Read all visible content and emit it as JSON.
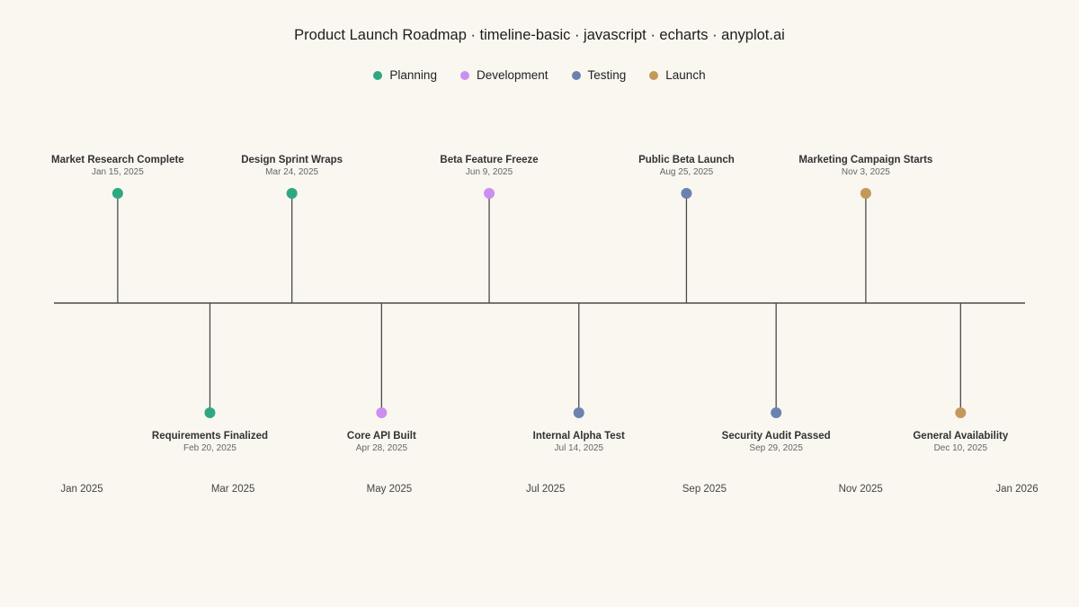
{
  "chart_data": {
    "type": "timeline",
    "title": "Product Launch Roadmap · timeline-basic · javascript · echarts · anyplot.ai",
    "categories": [
      {
        "name": "Planning",
        "color": "#2fa882"
      },
      {
        "name": "Development",
        "color": "#cc8ef0"
      },
      {
        "name": "Testing",
        "color": "#6b82b0"
      },
      {
        "name": "Launch",
        "color": "#c4985a"
      }
    ],
    "events": [
      {
        "title": "Market Research Complete",
        "date": "2025-01-15",
        "date_label": "Jan 15, 2025",
        "category": "Planning",
        "side": "above"
      },
      {
        "title": "Requirements Finalized",
        "date": "2025-02-20",
        "date_label": "Feb 20, 2025",
        "category": "Planning",
        "side": "below"
      },
      {
        "title": "Design Sprint Wraps",
        "date": "2025-03-24",
        "date_label": "Mar 24, 2025",
        "category": "Planning",
        "side": "above"
      },
      {
        "title": "Core API Built",
        "date": "2025-04-28",
        "date_label": "Apr 28, 2025",
        "category": "Development",
        "side": "below"
      },
      {
        "title": "Beta Feature Freeze",
        "date": "2025-06-09",
        "date_label": "Jun 9, 2025",
        "category": "Development",
        "side": "above"
      },
      {
        "title": "Internal Alpha Test",
        "date": "2025-07-14",
        "date_label": "Jul 14, 2025",
        "category": "Testing",
        "side": "below"
      },
      {
        "title": "Public Beta Launch",
        "date": "2025-08-25",
        "date_label": "Aug 25, 2025",
        "category": "Testing",
        "side": "above"
      },
      {
        "title": "Security Audit Passed",
        "date": "2025-09-29",
        "date_label": "Sep 29, 2025",
        "category": "Testing",
        "side": "below"
      },
      {
        "title": "Marketing Campaign Starts",
        "date": "2025-11-03",
        "date_label": "Nov 3, 2025",
        "category": "Launch",
        "side": "above"
      },
      {
        "title": "General Availability",
        "date": "2025-12-10",
        "date_label": "Dec 10, 2025",
        "category": "Launch",
        "side": "below"
      }
    ],
    "x_range": [
      "2025-01-01",
      "2026-01-01"
    ],
    "ticks": [
      {
        "date": "2025-01-01",
        "label": "Jan 2025"
      },
      {
        "date": "2025-03-01",
        "label": "Mar 2025"
      },
      {
        "date": "2025-05-01",
        "label": "May 2025"
      },
      {
        "date": "2025-07-01",
        "label": "Jul 2025"
      },
      {
        "date": "2025-09-01",
        "label": "Sep 2025"
      },
      {
        "date": "2025-11-01",
        "label": "Nov 2025"
      },
      {
        "date": "2026-01-01",
        "label": "Jan 2026"
      }
    ],
    "legend_position": "top-center",
    "grid": false
  }
}
